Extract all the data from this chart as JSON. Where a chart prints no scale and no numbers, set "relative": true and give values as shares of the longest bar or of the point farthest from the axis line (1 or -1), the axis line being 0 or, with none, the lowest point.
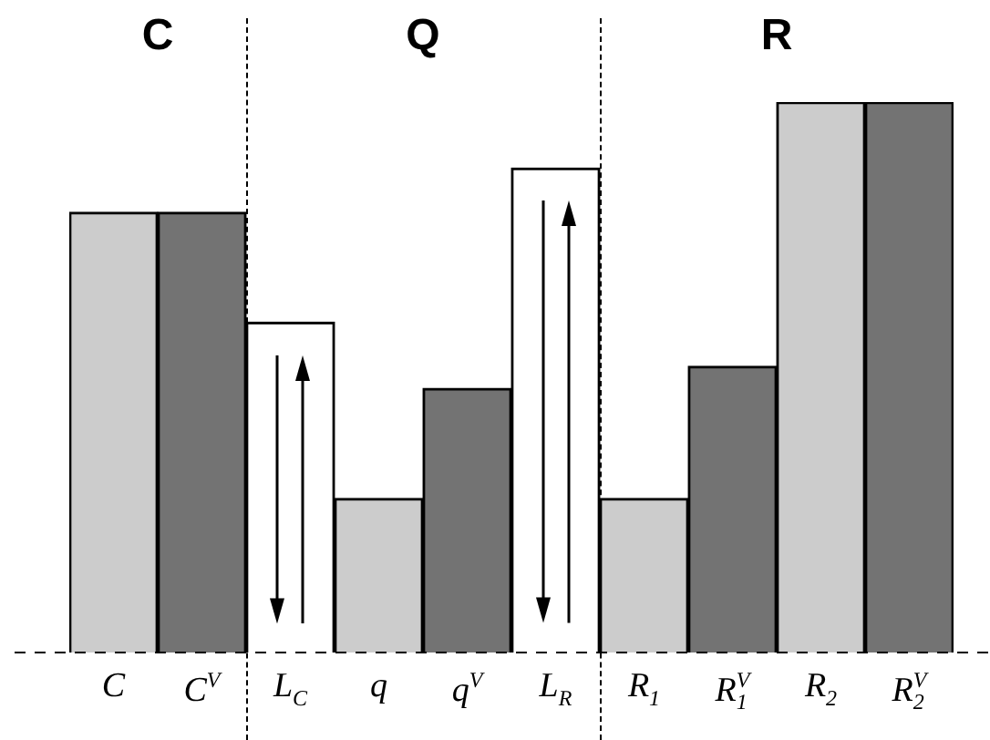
{
  "chart_data": {
    "type": "bar",
    "relative": true,
    "categories": [
      "C",
      "C$^{V}$",
      "L$_{C}$",
      "q",
      "q$^{V}$",
      "L$_{R}$",
      "R$_{1}$",
      "R$_{1}$$^{V}$",
      "R$_{2}$",
      "R$_{2}$$^{V}$"
    ],
    "values": [
      0.8,
      0.8,
      0.6,
      0.28,
      0.48,
      0.88,
      0.28,
      0.52,
      1,
      1
    ],
    "colors": [
      "#cccccc",
      "#737373",
      "#ffffff",
      "#cccccc",
      "#737373",
      "#ffffff",
      "#cccccc",
      "#737373",
      "#cccccc",
      "#737373"
    ],
    "annotations": [
      "C",
      "Q",
      "R"
    ],
    "legend": false
  }
}
